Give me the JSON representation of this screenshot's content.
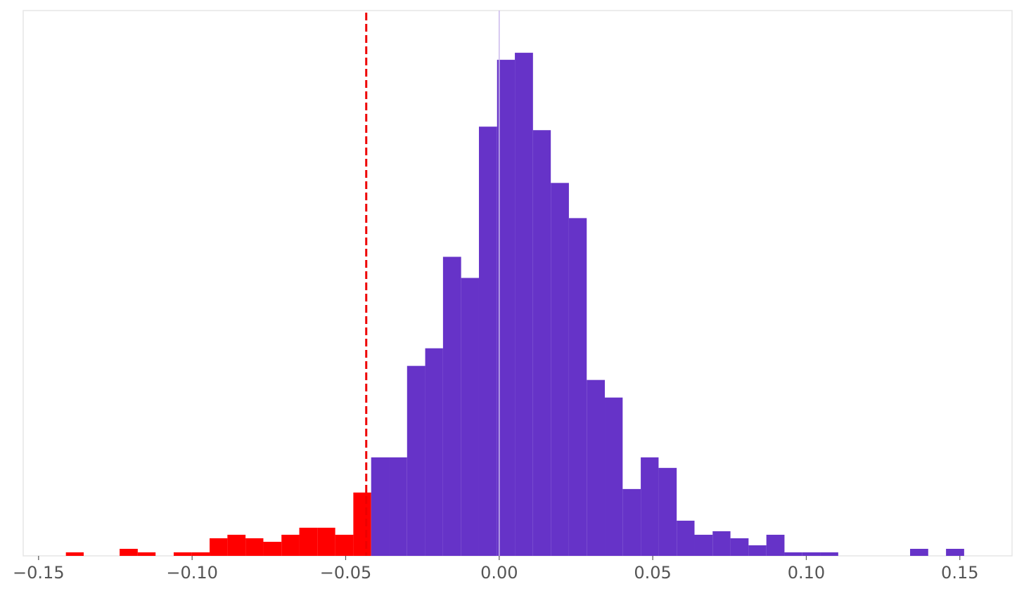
{
  "chart_data": {
    "type": "bar",
    "subtype": "histogram",
    "title": "",
    "xlabel": "",
    "ylabel": "",
    "xlim": [
      -0.155,
      0.167
    ],
    "ylim": [
      0,
      155
    ],
    "grid": false,
    "vline": {
      "x": -0.0433,
      "style": "dashed",
      "color": "#ee0000"
    },
    "center_line": {
      "x": 0.0,
      "color": "#c9b8ec"
    },
    "colors": {
      "below_threshold": "#ff0000",
      "above_threshold": "#6633c8",
      "frame": "#e6e6e6"
    },
    "xticks": [
      {
        "value": -0.15,
        "label": "−0.15"
      },
      {
        "value": -0.1,
        "label": "−0.10"
      },
      {
        "value": -0.05,
        "label": "−0.05"
      },
      {
        "value": 0.0,
        "label": "0.00"
      },
      {
        "value": 0.05,
        "label": "0.05"
      },
      {
        "value": 0.1,
        "label": "0.10"
      },
      {
        "value": 0.15,
        "label": "0.15"
      }
    ],
    "bins": [
      {
        "x0": -0.1411,
        "x1": -0.1353,
        "count": 1,
        "group": "below"
      },
      {
        "x0": -0.1236,
        "x1": -0.1177,
        "count": 2,
        "group": "below"
      },
      {
        "x0": -0.1177,
        "x1": -0.1119,
        "count": 1,
        "group": "below"
      },
      {
        "x0": -0.106,
        "x1": -0.1002,
        "count": 1,
        "group": "below"
      },
      {
        "x0": -0.1002,
        "x1": -0.0943,
        "count": 1,
        "group": "below"
      },
      {
        "x0": -0.0943,
        "x1": -0.0885,
        "count": 5,
        "group": "below"
      },
      {
        "x0": -0.0885,
        "x1": -0.0826,
        "count": 6,
        "group": "below"
      },
      {
        "x0": -0.0826,
        "x1": -0.0768,
        "count": 5,
        "group": "below"
      },
      {
        "x0": -0.0768,
        "x1": -0.0709,
        "count": 4,
        "group": "below"
      },
      {
        "x0": -0.0709,
        "x1": -0.0651,
        "count": 6,
        "group": "below"
      },
      {
        "x0": -0.0651,
        "x1": -0.0592,
        "count": 8,
        "group": "below"
      },
      {
        "x0": -0.0592,
        "x1": -0.0534,
        "count": 8,
        "group": "below"
      },
      {
        "x0": -0.0534,
        "x1": -0.0475,
        "count": 6,
        "group": "below"
      },
      {
        "x0": -0.0475,
        "x1": -0.0417,
        "count": 18,
        "group": "below"
      },
      {
        "x0": -0.0417,
        "x1": -0.0358,
        "count": 28,
        "group": "above"
      },
      {
        "x0": -0.0358,
        "x1": -0.03,
        "count": 28,
        "group": "above"
      },
      {
        "x0": -0.03,
        "x1": -0.0241,
        "count": 54,
        "group": "above"
      },
      {
        "x0": -0.0241,
        "x1": -0.0183,
        "count": 59,
        "group": "above"
      },
      {
        "x0": -0.0183,
        "x1": -0.0124,
        "count": 85,
        "group": "above"
      },
      {
        "x0": -0.0124,
        "x1": -0.0066,
        "count": 79,
        "group": "above"
      },
      {
        "x0": -0.0066,
        "x1": -0.0007,
        "count": 122,
        "group": "above"
      },
      {
        "x0": -0.0007,
        "x1": 0.0051,
        "count": 141,
        "group": "above"
      },
      {
        "x0": 0.0051,
        "x1": 0.011,
        "count": 143,
        "group": "above"
      },
      {
        "x0": 0.011,
        "x1": 0.0168,
        "count": 121,
        "group": "above"
      },
      {
        "x0": 0.0168,
        "x1": 0.0227,
        "count": 106,
        "group": "above"
      },
      {
        "x0": 0.0227,
        "x1": 0.0285,
        "count": 96,
        "group": "above"
      },
      {
        "x0": 0.0285,
        "x1": 0.0344,
        "count": 50,
        "group": "above"
      },
      {
        "x0": 0.0344,
        "x1": 0.0402,
        "count": 45,
        "group": "above"
      },
      {
        "x0": 0.0402,
        "x1": 0.0461,
        "count": 19,
        "group": "above"
      },
      {
        "x0": 0.0461,
        "x1": 0.0519,
        "count": 28,
        "group": "above"
      },
      {
        "x0": 0.0519,
        "x1": 0.0578,
        "count": 25,
        "group": "above"
      },
      {
        "x0": 0.0578,
        "x1": 0.0636,
        "count": 10,
        "group": "above"
      },
      {
        "x0": 0.0636,
        "x1": 0.0695,
        "count": 6,
        "group": "above"
      },
      {
        "x0": 0.0695,
        "x1": 0.0753,
        "count": 7,
        "group": "above"
      },
      {
        "x0": 0.0753,
        "x1": 0.0812,
        "count": 5,
        "group": "above"
      },
      {
        "x0": 0.0812,
        "x1": 0.087,
        "count": 3,
        "group": "above"
      },
      {
        "x0": 0.087,
        "x1": 0.0929,
        "count": 6,
        "group": "above"
      },
      {
        "x0": 0.0929,
        "x1": 0.0987,
        "count": 1,
        "group": "above"
      },
      {
        "x0": 0.0987,
        "x1": 0.1046,
        "count": 1,
        "group": "above"
      },
      {
        "x0": 0.1046,
        "x1": 0.1104,
        "count": 1,
        "group": "above"
      },
      {
        "x0": 0.1338,
        "x1": 0.1397,
        "count": 2,
        "group": "above"
      },
      {
        "x0": 0.1455,
        "x1": 0.1514,
        "count": 2,
        "group": "above"
      }
    ]
  }
}
